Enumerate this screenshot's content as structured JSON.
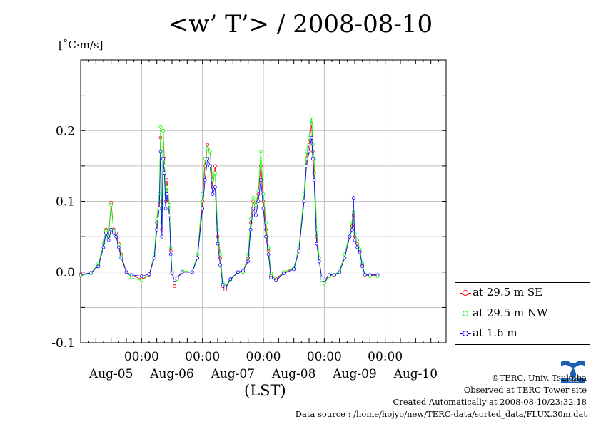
{
  "title": "<w’ T’> / 2008-08-10",
  "unit_label": "[˚C·m/s]",
  "x_unit_label": "(LST)",
  "legend_entries": [
    {
      "label": "at 29.5 m SE",
      "color": "#ff0000"
    },
    {
      "label": "at 29.5 m NW",
      "color": "#00ff00"
    },
    {
      "label": "at 1.6 m",
      "color": "#0000ff"
    }
  ],
  "credits": {
    "copyright": "©TERC, Univ. Tsukuba",
    "observed": "Observed at TERC Tower site",
    "created": "Created Automatically at 2008-08-10/23:32:18",
    "source": "Data source : /home/hojyo/new/TERC-data/sorted_data/FLUX.30m.dat"
  },
  "logo_text": "TERC",
  "chart_data": {
    "type": "line",
    "title": "<w’ T’> / 2008-08-10",
    "ylabel": "[˚C·m/s]",
    "xlabel": "(LST)",
    "ylim": [
      -0.1,
      0.3
    ],
    "yticks": [
      -0.1,
      0.0,
      0.1,
      0.2
    ],
    "ytick_labels": [
      "-0.1",
      "0.0",
      "0.1",
      "0.2"
    ],
    "xlim_hours": [
      0,
      144
    ],
    "xticks_hours": [
      24,
      48,
      72,
      96,
      120
    ],
    "xtick_time_labels": [
      "00:00",
      "00:00",
      "00:00",
      "00:00",
      "00:00"
    ],
    "day_labels": [
      {
        "label": "Aug-05",
        "hour": 12
      },
      {
        "label": "Aug-06",
        "hour": 36
      },
      {
        "label": "Aug-07",
        "hour": 60
      },
      {
        "label": "Aug-08",
        "hour": 84
      },
      {
        "label": "Aug-09",
        "hour": 108
      },
      {
        "label": "Aug-10",
        "hour": 132
      }
    ],
    "grid": true,
    "legend_position": "right",
    "series": [
      {
        "name": "at 29.5 m SE",
        "color": "#ff0000",
        "points": [
          [
            0,
            -0.003
          ],
          [
            4,
            -0.002
          ],
          [
            7,
            0.01
          ],
          [
            9,
            0.04
          ],
          [
            10,
            0.06
          ],
          [
            11,
            0.05
          ],
          [
            12,
            0.098
          ],
          [
            13,
            0.06
          ],
          [
            14,
            0.055
          ],
          [
            15,
            0.04
          ],
          [
            16,
            0.025
          ],
          [
            18,
            0.0
          ],
          [
            20,
            -0.005
          ],
          [
            24,
            -0.01
          ],
          [
            27,
            -0.005
          ],
          [
            29,
            0.02
          ],
          [
            30,
            0.07
          ],
          [
            31,
            0.1
          ],
          [
            31.5,
            0.19
          ],
          [
            32,
            0.06
          ],
          [
            32.5,
            0.2
          ],
          [
            33,
            0.16
          ],
          [
            33.5,
            0.1
          ],
          [
            34,
            0.13
          ],
          [
            35,
            0.09
          ],
          [
            35.5,
            0.03
          ],
          [
            36,
            0.0
          ],
          [
            37,
            -0.02
          ],
          [
            38,
            -0.01
          ],
          [
            40,
            0.0
          ],
          [
            44,
            0.0
          ],
          [
            46,
            0.02
          ],
          [
            48,
            0.1
          ],
          [
            49,
            0.15
          ],
          [
            50,
            0.18
          ],
          [
            51,
            0.17
          ],
          [
            52,
            0.12
          ],
          [
            53,
            0.15
          ],
          [
            54,
            0.05
          ],
          [
            55,
            0.02
          ],
          [
            56,
            -0.02
          ],
          [
            57,
            -0.025
          ],
          [
            59,
            -0.01
          ],
          [
            62,
            0.0
          ],
          [
            64,
            0.0
          ],
          [
            66,
            0.02
          ],
          [
            67,
            0.07
          ],
          [
            68,
            0.1
          ],
          [
            69,
            0.09
          ],
          [
            70,
            0.11
          ],
          [
            71,
            0.15
          ],
          [
            72,
            0.1
          ],
          [
            73,
            0.06
          ],
          [
            74,
            0.03
          ],
          [
            75,
            -0.005
          ],
          [
            77,
            -0.01
          ],
          [
            80,
            0.0
          ],
          [
            84,
            0.005
          ],
          [
            86,
            0.03
          ],
          [
            88,
            0.1
          ],
          [
            89,
            0.16
          ],
          [
            90,
            0.18
          ],
          [
            91,
            0.21
          ],
          [
            91.5,
            0.17
          ],
          [
            92,
            0.14
          ],
          [
            93,
            0.05
          ],
          [
            94,
            0.02
          ],
          [
            95,
            -0.01
          ],
          [
            96,
            -0.015
          ],
          [
            98,
            -0.005
          ],
          [
            100,
            -0.005
          ],
          [
            102,
            0.0
          ],
          [
            104,
            0.02
          ],
          [
            106,
            0.05
          ],
          [
            107,
            0.065
          ],
          [
            107.5,
            0.08
          ],
          [
            108,
            0.05
          ],
          [
            109,
            0.04
          ],
          [
            110,
            0.03
          ],
          [
            111,
            0.01
          ],
          [
            112,
            -0.005
          ],
          [
            114,
            -0.005
          ],
          [
            117,
            -0.005
          ]
        ]
      },
      {
        "name": "at 29.5 m NW",
        "color": "#00ff00",
        "points": [
          [
            0,
            -0.005
          ],
          [
            4,
            -0.002
          ],
          [
            7,
            0.012
          ],
          [
            9,
            0.04
          ],
          [
            10,
            0.058
          ],
          [
            11,
            0.05
          ],
          [
            12,
            0.095
          ],
          [
            13,
            0.058
          ],
          [
            14,
            0.05
          ],
          [
            15,
            0.038
          ],
          [
            16,
            0.022
          ],
          [
            18,
            0.0
          ],
          [
            20,
            -0.008
          ],
          [
            24,
            -0.012
          ],
          [
            27,
            -0.004
          ],
          [
            29,
            0.025
          ],
          [
            30,
            0.075
          ],
          [
            31,
            0.11
          ],
          [
            31.5,
            0.205
          ],
          [
            32,
            0.07
          ],
          [
            32.5,
            0.2
          ],
          [
            33,
            0.15
          ],
          [
            33.5,
            0.11
          ],
          [
            34,
            0.12
          ],
          [
            35,
            0.095
          ],
          [
            35.5,
            0.035
          ],
          [
            36,
            0.002
          ],
          [
            37,
            -0.015
          ],
          [
            38,
            -0.01
          ],
          [
            40,
            0.002
          ],
          [
            44,
            0.0
          ],
          [
            46,
            0.025
          ],
          [
            48,
            0.11
          ],
          [
            49,
            0.16
          ],
          [
            50,
            0.175
          ],
          [
            51,
            0.17
          ],
          [
            52,
            0.13
          ],
          [
            53,
            0.14
          ],
          [
            54,
            0.06
          ],
          [
            55,
            0.025
          ],
          [
            56,
            -0.015
          ],
          [
            57,
            -0.02
          ],
          [
            59,
            -0.012
          ],
          [
            62,
            0.0
          ],
          [
            64,
            0.0
          ],
          [
            66,
            0.025
          ],
          [
            67,
            0.075
          ],
          [
            68,
            0.105
          ],
          [
            69,
            0.095
          ],
          [
            70,
            0.115
          ],
          [
            71,
            0.17
          ],
          [
            72,
            0.11
          ],
          [
            73,
            0.07
          ],
          [
            74,
            0.035
          ],
          [
            75,
            -0.002
          ],
          [
            77,
            -0.012
          ],
          [
            80,
            0.0
          ],
          [
            84,
            0.006
          ],
          [
            86,
            0.035
          ],
          [
            88,
            0.11
          ],
          [
            89,
            0.17
          ],
          [
            90,
            0.19
          ],
          [
            91,
            0.22
          ],
          [
            91.5,
            0.18
          ],
          [
            92,
            0.16
          ],
          [
            93,
            0.06
          ],
          [
            94,
            0.02
          ],
          [
            95,
            -0.012
          ],
          [
            96,
            -0.016
          ],
          [
            98,
            -0.006
          ],
          [
            100,
            -0.004
          ],
          [
            102,
            0.002
          ],
          [
            104,
            0.025
          ],
          [
            106,
            0.055
          ],
          [
            107,
            0.07
          ],
          [
            107.5,
            0.085
          ],
          [
            108,
            0.055
          ],
          [
            109,
            0.045
          ],
          [
            110,
            0.032
          ],
          [
            111,
            0.012
          ],
          [
            112,
            -0.004
          ],
          [
            114,
            -0.006
          ],
          [
            117,
            -0.006
          ]
        ]
      },
      {
        "name": "at 1.6 m",
        "color": "#0000ff",
        "points": [
          [
            0,
            -0.004
          ],
          [
            4,
            -0.001
          ],
          [
            7,
            0.008
          ],
          [
            9,
            0.035
          ],
          [
            10,
            0.055
          ],
          [
            11,
            0.045
          ],
          [
            12,
            0.06
          ],
          [
            13,
            0.055
          ],
          [
            14,
            0.05
          ],
          [
            15,
            0.035
          ],
          [
            16,
            0.02
          ],
          [
            18,
            0.0
          ],
          [
            20,
            -0.004
          ],
          [
            24,
            -0.006
          ],
          [
            27,
            -0.003
          ],
          [
            29,
            0.02
          ],
          [
            30,
            0.06
          ],
          [
            31,
            0.09
          ],
          [
            31.5,
            0.17
          ],
          [
            32,
            0.05
          ],
          [
            32.5,
            0.16
          ],
          [
            33,
            0.14
          ],
          [
            33.5,
            0.09
          ],
          [
            34,
            0.11
          ],
          [
            35,
            0.08
          ],
          [
            35.5,
            0.025
          ],
          [
            36,
            -0.002
          ],
          [
            37,
            -0.012
          ],
          [
            38,
            -0.008
          ],
          [
            40,
            0.0
          ],
          [
            44,
            0.0
          ],
          [
            46,
            0.02
          ],
          [
            48,
            0.09
          ],
          [
            49,
            0.13
          ],
          [
            50,
            0.16
          ],
          [
            51,
            0.15
          ],
          [
            52,
            0.11
          ],
          [
            53,
            0.12
          ],
          [
            54,
            0.04
          ],
          [
            55,
            0.01
          ],
          [
            56,
            -0.018
          ],
          [
            57,
            -0.022
          ],
          [
            59,
            -0.01
          ],
          [
            62,
            0.0
          ],
          [
            64,
            0.002
          ],
          [
            66,
            0.015
          ],
          [
            67,
            0.06
          ],
          [
            68,
            0.09
          ],
          [
            69,
            0.08
          ],
          [
            70,
            0.1
          ],
          [
            71,
            0.13
          ],
          [
            72,
            0.09
          ],
          [
            73,
            0.05
          ],
          [
            74,
            0.025
          ],
          [
            75,
            -0.008
          ],
          [
            77,
            -0.012
          ],
          [
            80,
            -0.002
          ],
          [
            84,
            0.004
          ],
          [
            86,
            0.03
          ],
          [
            88,
            0.1
          ],
          [
            89,
            0.15
          ],
          [
            90,
            0.17
          ],
          [
            91,
            0.19
          ],
          [
            91.5,
            0.16
          ],
          [
            92,
            0.13
          ],
          [
            93,
            0.04
          ],
          [
            94,
            0.015
          ],
          [
            95,
            -0.008
          ],
          [
            96,
            -0.012
          ],
          [
            98,
            -0.004
          ],
          [
            100,
            -0.004
          ],
          [
            102,
            0.0
          ],
          [
            104,
            0.02
          ],
          [
            106,
            0.05
          ],
          [
            107,
            0.06
          ],
          [
            107.5,
            0.105
          ],
          [
            108,
            0.045
          ],
          [
            109,
            0.035
          ],
          [
            110,
            0.028
          ],
          [
            111,
            0.008
          ],
          [
            112,
            -0.004
          ],
          [
            114,
            -0.004
          ],
          [
            117,
            -0.004
          ]
        ]
      }
    ]
  }
}
